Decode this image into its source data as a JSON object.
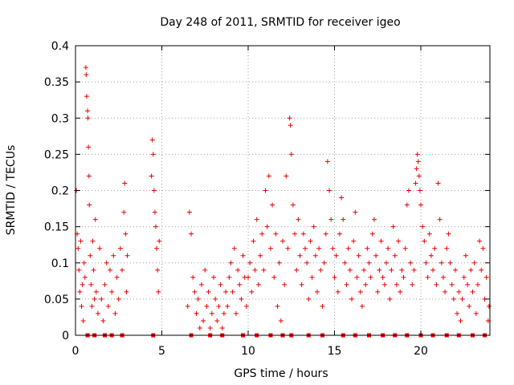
{
  "chart_data": {
    "type": "scatter",
    "title": "Day 248 of 2011, SRMTID for receiver igeo",
    "xlabel": "GPS time / hours",
    "ylabel": "SRMTID / TECUs",
    "xlim": [
      0,
      24
    ],
    "ylim": [
      0,
      0.4
    ],
    "x_ticks": [
      0,
      5,
      10,
      15,
      20
    ],
    "x_tick_labels": [
      "0",
      "5",
      "10",
      "15",
      "20"
    ],
    "y_ticks": [
      0,
      0.05,
      0.1,
      0.15,
      0.2,
      0.25,
      0.3,
      0.35,
      0.4
    ],
    "y_tick_labels": [
      "0",
      "0.05",
      "0.1",
      "0.15",
      "0.2",
      "0.25",
      "0.3",
      "0.35",
      "0.4"
    ],
    "grid": true,
    "marker": "plus",
    "color": "#ee0000",
    "series": [
      {
        "name": "SRMTID",
        "points": [
          [
            0.05,
            0.2
          ],
          [
            0.1,
            0.14
          ],
          [
            0.15,
            0.12
          ],
          [
            0.2,
            0.09
          ],
          [
            0.25,
            0.06
          ],
          [
            0.3,
            0.13
          ],
          [
            0.35,
            0.04
          ],
          [
            0.4,
            0.07
          ],
          [
            0.45,
            0.02
          ],
          [
            0.5,
            0.1
          ],
          [
            0.55,
            0.08
          ],
          [
            0.6,
            0.37
          ],
          [
            0.62,
            0.36
          ],
          [
            0.65,
            0.33
          ],
          [
            0.7,
            0.31
          ],
          [
            0.72,
            0.3
          ],
          [
            0.75,
            0.26
          ],
          [
            0.78,
            0.22
          ],
          [
            0.8,
            0.18
          ],
          [
            0.85,
            0.11
          ],
          [
            0.9,
            0.07
          ],
          [
            0.95,
            0.04
          ],
          [
            1.0,
            0.13
          ],
          [
            1.05,
            0.09
          ],
          [
            1.1,
            0.05
          ],
          [
            1.15,
            0.16
          ],
          [
            1.2,
            0.06
          ],
          [
            1.3,
            0.03
          ],
          [
            1.4,
            0.12
          ],
          [
            1.5,
            0.05
          ],
          [
            1.6,
            0.02
          ],
          [
            1.7,
            0.07
          ],
          [
            1.8,
            0.1
          ],
          [
            1.9,
            0.04
          ],
          [
            2.0,
            0.09
          ],
          [
            2.1,
            0.06
          ],
          [
            2.2,
            0.11
          ],
          [
            2.3,
            0.03
          ],
          [
            2.4,
            0.08
          ],
          [
            2.5,
            0.05
          ],
          [
            2.6,
            0.12
          ],
          [
            2.7,
            0.09
          ],
          [
            2.8,
            0.17
          ],
          [
            2.85,
            0.21
          ],
          [
            2.9,
            0.14
          ],
          [
            2.95,
            0.06
          ],
          [
            3.0,
            0.11
          ],
          [
            4.4,
            0.22
          ],
          [
            4.45,
            0.27
          ],
          [
            4.5,
            0.25
          ],
          [
            4.55,
            0.2
          ],
          [
            4.6,
            0.17
          ],
          [
            4.65,
            0.15
          ],
          [
            4.7,
            0.12
          ],
          [
            4.75,
            0.09
          ],
          [
            4.8,
            0.06
          ],
          [
            4.85,
            0.13
          ],
          [
            6.5,
            0.04
          ],
          [
            6.6,
            0.17
          ],
          [
            6.7,
            0.14
          ],
          [
            6.8,
            0.08
          ],
          [
            6.9,
            0.06
          ],
          [
            7.0,
            0.03
          ],
          [
            7.1,
            0.05
          ],
          [
            7.2,
            0.01
          ],
          [
            7.3,
            0.07
          ],
          [
            7.4,
            0.02
          ],
          [
            7.5,
            0.09
          ],
          [
            7.6,
            0.04
          ],
          [
            7.7,
            0.06
          ],
          [
            7.8,
            0.01
          ],
          [
            7.9,
            0.03
          ],
          [
            8.0,
            0.08
          ],
          [
            8.1,
            0.05
          ],
          [
            8.2,
            0.02
          ],
          [
            8.3,
            0.04
          ],
          [
            8.4,
            0.07
          ],
          [
            8.5,
            0.01
          ],
          [
            8.6,
            0.03
          ],
          [
            8.7,
            0.06
          ],
          [
            8.8,
            0.04
          ],
          [
            8.9,
            0.08
          ],
          [
            9.0,
            0.1
          ],
          [
            9.1,
            0.06
          ],
          [
            9.2,
            0.12
          ],
          [
            9.3,
            0.03
          ],
          [
            9.4,
            0.09
          ],
          [
            9.5,
            0.07
          ],
          [
            9.6,
            0.05
          ],
          [
            9.7,
            0.11
          ],
          [
            9.8,
            0.08
          ],
          [
            9.9,
            0.04
          ],
          [
            10.0,
            0.08
          ],
          [
            10.1,
            0.1
          ],
          [
            10.2,
            0.06
          ],
          [
            10.3,
            0.13
          ],
          [
            10.4,
            0.09
          ],
          [
            10.5,
            0.16
          ],
          [
            10.6,
            0.07
          ],
          [
            10.7,
            0.11
          ],
          [
            10.8,
            0.14
          ],
          [
            10.9,
            0.09
          ],
          [
            11.0,
            0.2
          ],
          [
            11.1,
            0.15
          ],
          [
            11.2,
            0.22
          ],
          [
            11.3,
            0.12
          ],
          [
            11.4,
            0.18
          ],
          [
            11.5,
            0.08
          ],
          [
            11.6,
            0.14
          ],
          [
            11.7,
            0.04
          ],
          [
            11.8,
            0.1
          ],
          [
            11.9,
            0.02
          ],
          [
            12.0,
            0.13
          ],
          [
            12.1,
            0.07
          ],
          [
            12.2,
            0.22
          ],
          [
            12.3,
            0.12
          ],
          [
            12.4,
            0.3
          ],
          [
            12.45,
            0.29
          ],
          [
            12.5,
            0.25
          ],
          [
            12.6,
            0.18
          ],
          [
            12.7,
            0.14
          ],
          [
            12.8,
            0.09
          ],
          [
            12.9,
            0.16
          ],
          [
            13.0,
            0.11
          ],
          [
            13.1,
            0.07
          ],
          [
            13.2,
            0.14
          ],
          [
            13.3,
            0.12
          ],
          [
            13.4,
            0.1
          ],
          [
            13.5,
            0.05
          ],
          [
            13.6,
            0.13
          ],
          [
            13.7,
            0.08
          ],
          [
            13.8,
            0.15
          ],
          [
            13.9,
            0.11
          ],
          [
            14.0,
            0.06
          ],
          [
            14.1,
            0.12
          ],
          [
            14.2,
            0.09
          ],
          [
            14.3,
            0.04
          ],
          [
            14.4,
            0.1
          ],
          [
            14.5,
            0.14
          ],
          [
            14.6,
            0.24
          ],
          [
            14.7,
            0.2
          ],
          [
            14.8,
            0.16
          ],
          [
            14.9,
            0.12
          ],
          [
            15.0,
            0.08
          ],
          [
            15.1,
            0.11
          ],
          [
            15.2,
            0.06
          ],
          [
            15.3,
            0.14
          ],
          [
            15.4,
            0.19
          ],
          [
            15.5,
            0.16
          ],
          [
            15.6,
            0.1
          ],
          [
            15.7,
            0.07
          ],
          [
            15.8,
            0.12
          ],
          [
            15.9,
            0.09
          ],
          [
            16.0,
            0.05
          ],
          [
            16.1,
            0.13
          ],
          [
            16.2,
            0.17
          ],
          [
            16.3,
            0.08
          ],
          [
            16.4,
            0.11
          ],
          [
            16.5,
            0.06
          ],
          [
            16.6,
            0.04
          ],
          [
            16.7,
            0.09
          ],
          [
            16.8,
            0.07
          ],
          [
            16.9,
            0.12
          ],
          [
            17.0,
            0.1
          ],
          [
            17.1,
            0.08
          ],
          [
            17.2,
            0.14
          ],
          [
            17.3,
            0.16
          ],
          [
            17.4,
            0.11
          ],
          [
            17.5,
            0.06
          ],
          [
            17.6,
            0.09
          ],
          [
            17.7,
            0.13
          ],
          [
            17.8,
            0.08
          ],
          [
            17.9,
            0.07
          ],
          [
            18.0,
            0.1
          ],
          [
            18.1,
            0.12
          ],
          [
            18.2,
            0.05
          ],
          [
            18.3,
            0.09
          ],
          [
            18.4,
            0.15
          ],
          [
            18.5,
            0.11
          ],
          [
            18.6,
            0.07
          ],
          [
            18.7,
            0.13
          ],
          [
            18.8,
            0.06
          ],
          [
            18.9,
            0.09
          ],
          [
            19.0,
            0.08
          ],
          [
            19.1,
            0.12
          ],
          [
            19.2,
            0.18
          ],
          [
            19.3,
            0.2
          ],
          [
            19.4,
            0.1
          ],
          [
            19.5,
            0.07
          ],
          [
            19.6,
            0.09
          ],
          [
            19.7,
            0.21
          ],
          [
            19.75,
            0.23
          ],
          [
            19.8,
            0.25
          ],
          [
            19.85,
            0.24
          ],
          [
            19.9,
            0.22
          ],
          [
            19.95,
            0.2
          ],
          [
            20.0,
            0.18
          ],
          [
            20.1,
            0.15
          ],
          [
            20.2,
            0.13
          ],
          [
            20.3,
            0.1
          ],
          [
            20.4,
            0.08
          ],
          [
            20.5,
            0.14
          ],
          [
            20.6,
            0.11
          ],
          [
            20.7,
            0.09
          ],
          [
            20.8,
            0.12
          ],
          [
            20.9,
            0.07
          ],
          [
            21.0,
            0.21
          ],
          [
            21.1,
            0.16
          ],
          [
            21.2,
            0.1
          ],
          [
            21.3,
            0.08
          ],
          [
            21.4,
            0.06
          ],
          [
            21.5,
            0.12
          ],
          [
            21.6,
            0.14
          ],
          [
            21.7,
            0.1
          ],
          [
            21.8,
            0.07
          ],
          [
            21.9,
            0.05
          ],
          [
            22.0,
            0.09
          ],
          [
            22.1,
            0.03
          ],
          [
            22.2,
            0.06
          ],
          [
            22.3,
            0.02
          ],
          [
            22.4,
            0.05
          ],
          [
            22.5,
            0.08
          ],
          [
            22.6,
            0.11
          ],
          [
            22.7,
            0.07
          ],
          [
            22.8,
            0.04
          ],
          [
            22.9,
            0.09
          ],
          [
            23.0,
            0.06
          ],
          [
            23.1,
            0.1
          ],
          [
            23.2,
            0.03
          ],
          [
            23.3,
            0.07
          ],
          [
            23.4,
            0.13
          ],
          [
            23.5,
            0.09
          ],
          [
            23.6,
            0.12
          ],
          [
            23.7,
            0.05
          ],
          [
            23.8,
            0.08
          ],
          [
            23.9,
            0.02
          ],
          [
            23.95,
            0.04
          ]
        ]
      }
    ],
    "zero_marker_x": [
      0.7,
      1.1,
      1.7,
      2.1,
      2.7,
      4.5,
      6.7,
      7.8,
      8.5,
      9.7,
      10.5,
      11.3,
      12.0,
      12.5,
      13.5,
      14.3,
      15.5,
      16.2,
      17.0,
      17.8,
      18.5,
      19.2,
      20.0,
      20.7,
      21.5,
      22.2,
      23.0,
      23.7
    ]
  }
}
